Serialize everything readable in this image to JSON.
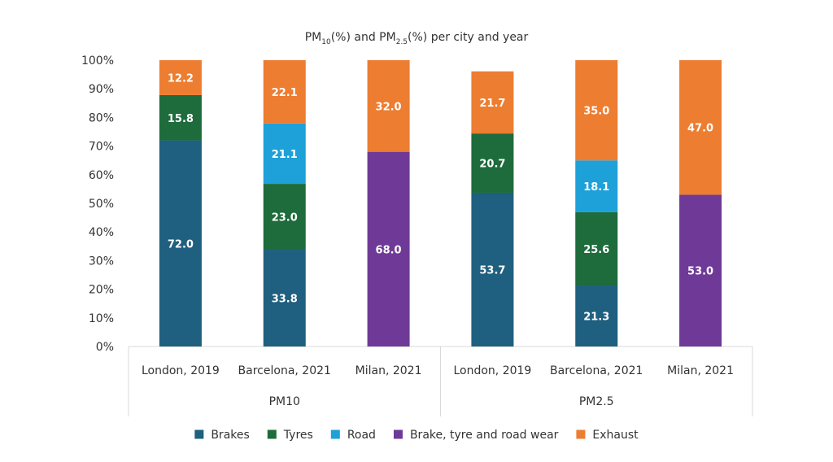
{
  "chart_data": {
    "type": "bar",
    "stacked": true,
    "title": {
      "parts": [
        {
          "text": "PM",
          "sub": false
        },
        {
          "text": "10",
          "sub": true
        },
        {
          "text": "(%) and PM",
          "sub": false
        },
        {
          "text": "2.5",
          "sub": true
        },
        {
          "text": "(%) per city and year",
          "sub": false
        }
      ]
    },
    "ylim": [
      0,
      100
    ],
    "yticks": [
      "0%",
      "10%",
      "20%",
      "30%",
      "40%",
      "50%",
      "60%",
      "70%",
      "80%",
      "90%",
      "100%"
    ],
    "groups": [
      {
        "label": "PM10",
        "categories": [
          "London, 2019",
          "Barcelona, 2021",
          "Milan, 2021"
        ]
      },
      {
        "label": "PM2.5",
        "categories": [
          "London, 2019",
          "Barcelona, 2021",
          "Milan, 2021"
        ]
      }
    ],
    "series": [
      {
        "name": "Brakes",
        "color": "#1f5f7f",
        "values": [
          72.0,
          33.8,
          null,
          53.7,
          21.3,
          null
        ]
      },
      {
        "name": "Tyres",
        "color": "#1e6b3c",
        "values": [
          15.8,
          23.0,
          null,
          20.7,
          25.6,
          null
        ]
      },
      {
        "name": "Road",
        "color": "#1ea0d8",
        "values": [
          null,
          21.1,
          null,
          null,
          18.1,
          null
        ]
      },
      {
        "name": "Brake, tyre and road wear",
        "color": "#6f3a97",
        "values": [
          null,
          null,
          68.0,
          null,
          null,
          53.0
        ]
      },
      {
        "name": "Exhaust",
        "color": "#ed7d31",
        "values": [
          12.2,
          22.1,
          32.0,
          21.7,
          35.0,
          47.0
        ]
      }
    ],
    "legend_position": "bottom",
    "grid": false
  }
}
